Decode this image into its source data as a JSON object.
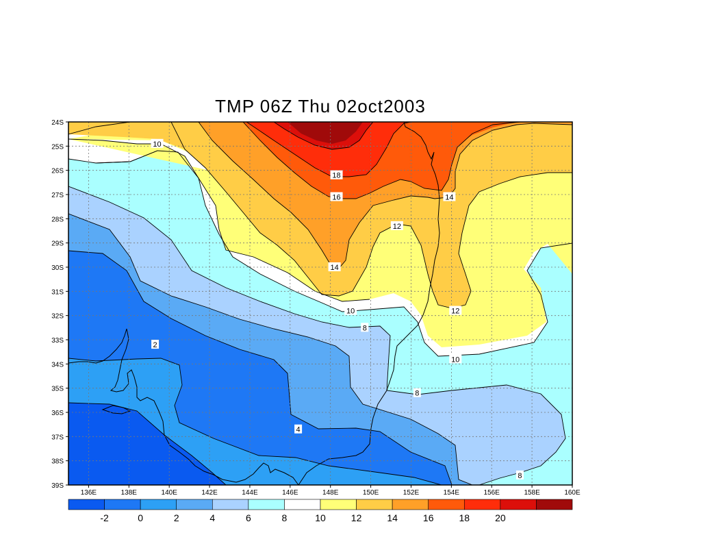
{
  "title": "TMP 06Z Thu 02oct2003",
  "map": {
    "lon_range": [
      135,
      160
    ],
    "lat_range": [
      -39,
      -24
    ],
    "lon_ticks": [
      "136E",
      "138E",
      "140E",
      "142E",
      "144E",
      "146E",
      "148E",
      "150E",
      "152E",
      "154E",
      "156E",
      "158E",
      "160E"
    ],
    "lat_ticks": [
      "24S",
      "25S",
      "26S",
      "27S",
      "28S",
      "29S",
      "30S",
      "31S",
      "32S",
      "33S",
      "34S",
      "35S",
      "36S",
      "37S",
      "38S",
      "39S"
    ],
    "grid": "dotted",
    "contour_labels": [
      {
        "text": "10",
        "lon": 139.4,
        "lat": -24.9
      },
      {
        "text": "18",
        "lon": 148.3,
        "lat": -26.2
      },
      {
        "text": "16",
        "lon": 148.3,
        "lat": -27.1
      },
      {
        "text": "14",
        "lon": 153.9,
        "lat": -27.1
      },
      {
        "text": "12",
        "lon": 151.3,
        "lat": -28.3
      },
      {
        "text": "14",
        "lon": 148.2,
        "lat": -30.0
      },
      {
        "text": "10",
        "lon": 149.0,
        "lat": -31.8
      },
      {
        "text": "8",
        "lon": 149.7,
        "lat": -32.5
      },
      {
        "text": "12",
        "lon": 154.2,
        "lat": -31.8
      },
      {
        "text": "2",
        "lon": 139.3,
        "lat": -33.2
      },
      {
        "text": "10",
        "lon": 154.2,
        "lat": -33.8
      },
      {
        "text": "8",
        "lon": 152.3,
        "lat": -35.2
      },
      {
        "text": "4",
        "lon": 146.4,
        "lat": -36.7
      },
      {
        "text": "8",
        "lon": 157.4,
        "lat": -38.6
      }
    ]
  },
  "colorbar": {
    "colors": [
      "#0a5af0",
      "#1e78f5",
      "#2da0f5",
      "#5aaaf5",
      "#aad2ff",
      "#aaffff",
      "#ffffff",
      "#ffff78",
      "#ffcd46",
      "#ffa028",
      "#ff5a0a",
      "#ff2d0a",
      "#dc0f0a",
      "#a00a0a"
    ],
    "labels": [
      "-2",
      "0",
      "2",
      "4",
      "6",
      "8",
      "10",
      "12",
      "14",
      "16",
      "18",
      "20"
    ]
  }
}
